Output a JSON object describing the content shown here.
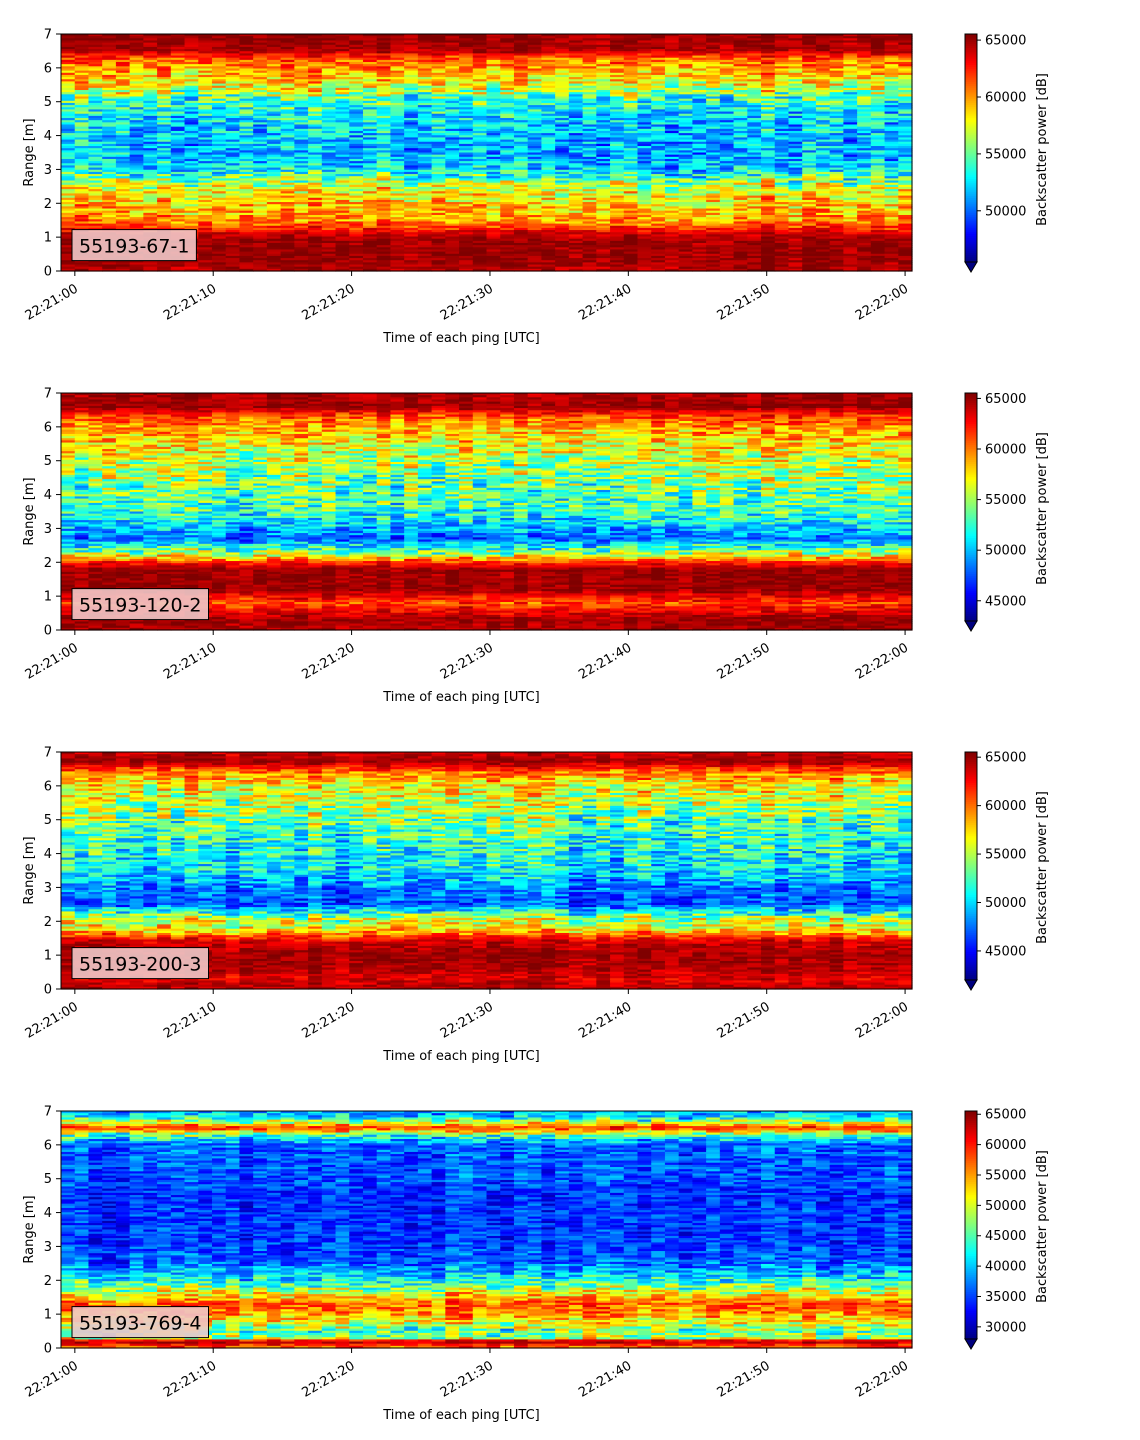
{
  "colormap": "jet",
  "colormap_stops": [
    "#00007f",
    "#0000ff",
    "#007fff",
    "#00ffff",
    "#7fff7f",
    "#ffff00",
    "#ff7f00",
    "#ff0000",
    "#7f0000"
  ],
  "badge_background": "#f0c8c8",
  "chart_data": [
    {
      "type": "heatmap",
      "label": "55193-67-1",
      "xlabel": "Time of each ping [UTC]",
      "ylabel": "Range [m]",
      "colorbar_label": "Backscatter power [dB]",
      "x_ticks": [
        "22:21:00",
        "22:21:10",
        "22:21:20",
        "22:21:30",
        "22:21:40",
        "22:21:50",
        "22:22:00"
      ],
      "y_ticks": [
        "0",
        "1",
        "2",
        "3",
        "4",
        "5",
        "6",
        "7"
      ],
      "ylim": [
        0,
        7
      ],
      "xlim": [
        "22:20:59",
        "22:22:00.5"
      ],
      "clim": [
        45500,
        65535
      ],
      "colorbar_ticks": [
        "50000",
        "55000",
        "60000",
        "65000"
      ],
      "colorbar_tick_values": [
        50000,
        55000,
        60000,
        65000
      ],
      "profile": {
        "range_m": [
          0,
          0.3,
          0.9,
          1.1,
          1.5,
          2.0,
          2.5,
          3.0,
          3.5,
          4.0,
          4.5,
          5.0,
          5.5,
          6.0,
          6.3,
          6.5,
          7.0
        ],
        "level": [
          0.95,
          0.97,
          0.97,
          0.92,
          0.72,
          0.68,
          0.58,
          0.35,
          0.3,
          0.32,
          0.35,
          0.42,
          0.62,
          0.72,
          0.8,
          0.95,
          0.98
        ]
      }
    },
    {
      "type": "heatmap",
      "label": "55193-120-2",
      "xlabel": "Time of each ping [UTC]",
      "ylabel": "Range [m]",
      "colorbar_label": "Backscatter power [dB]",
      "x_ticks": [
        "22:21:00",
        "22:21:10",
        "22:21:20",
        "22:21:30",
        "22:21:40",
        "22:21:50",
        "22:22:00"
      ],
      "y_ticks": [
        "0",
        "1",
        "2",
        "3",
        "4",
        "5",
        "6",
        "7"
      ],
      "ylim": [
        0,
        7
      ],
      "xlim": [
        "22:20:59",
        "22:22:00.5"
      ],
      "clim": [
        43000,
        65535
      ],
      "colorbar_ticks": [
        "45000",
        "50000",
        "55000",
        "60000",
        "65000"
      ],
      "colorbar_tick_values": [
        45000,
        50000,
        55000,
        60000,
        65000
      ],
      "profile": {
        "range_m": [
          0,
          0.3,
          0.8,
          1.2,
          1.8,
          2.0,
          2.3,
          2.7,
          3.0,
          3.5,
          4.0,
          4.5,
          5.0,
          5.5,
          6.0,
          6.3,
          6.6,
          7.0
        ],
        "level": [
          0.95,
          0.97,
          0.8,
          0.97,
          0.97,
          0.82,
          0.5,
          0.22,
          0.3,
          0.42,
          0.45,
          0.5,
          0.55,
          0.62,
          0.7,
          0.8,
          0.97,
          0.95
        ]
      }
    },
    {
      "type": "heatmap",
      "label": "55193-200-3",
      "xlabel": "Time of each ping [UTC]",
      "ylabel": "Range [m]",
      "colorbar_label": "Backscatter power [dB]",
      "x_ticks": [
        "22:21:00",
        "22:21:10",
        "22:21:20",
        "22:21:30",
        "22:21:40",
        "22:21:50",
        "22:22:00"
      ],
      "y_ticks": [
        "0",
        "1",
        "2",
        "3",
        "4",
        "5",
        "6",
        "7"
      ],
      "ylim": [
        0,
        7
      ],
      "xlim": [
        "22:20:59",
        "22:22:00.5"
      ],
      "clim": [
        42000,
        65535
      ],
      "colorbar_ticks": [
        "45000",
        "50000",
        "55000",
        "60000",
        "65000"
      ],
      "colorbar_tick_values": [
        45000,
        50000,
        55000,
        60000,
        65000
      ],
      "profile": {
        "range_m": [
          0,
          0.3,
          0.6,
          1.0,
          1.4,
          1.8,
          2.1,
          2.5,
          3.0,
          3.5,
          4.0,
          4.5,
          5.0,
          5.5,
          6.0,
          6.4,
          6.7,
          7.0
        ],
        "level": [
          0.95,
          0.9,
          0.95,
          0.97,
          0.92,
          0.62,
          0.55,
          0.2,
          0.25,
          0.35,
          0.38,
          0.42,
          0.48,
          0.55,
          0.62,
          0.75,
          0.97,
          0.92
        ]
      }
    },
    {
      "type": "heatmap",
      "label": "55193-769-4",
      "xlabel": "Time of each ping [UTC]",
      "ylabel": "Range [m]",
      "colorbar_label": "Backscatter power [dB]",
      "x_ticks": [
        "22:21:00",
        "22:21:10",
        "22:21:20",
        "22:21:30",
        "22:21:40",
        "22:21:50",
        "22:22:00"
      ],
      "y_ticks": [
        "0",
        "1",
        "2",
        "3",
        "4",
        "5",
        "6",
        "7"
      ],
      "ylim": [
        0,
        7
      ],
      "xlim": [
        "22:20:59",
        "22:22:00.5"
      ],
      "clim": [
        28000,
        65535
      ],
      "colorbar_ticks": [
        "30000",
        "35000",
        "40000",
        "45000",
        "50000",
        "55000",
        "60000",
        "65000"
      ],
      "colorbar_tick_values": [
        30000,
        35000,
        40000,
        45000,
        50000,
        55000,
        60000,
        65000
      ],
      "profile": {
        "range_m": [
          0,
          0.2,
          0.3,
          0.5,
          0.8,
          1.0,
          1.3,
          1.6,
          2.0,
          2.5,
          3.0,
          3.5,
          4.0,
          4.5,
          5.0,
          5.5,
          6.0,
          6.3,
          6.5,
          6.8,
          7.0
        ],
        "level": [
          0.75,
          0.97,
          0.5,
          0.45,
          0.62,
          0.72,
          0.78,
          0.6,
          0.38,
          0.22,
          0.18,
          0.17,
          0.17,
          0.16,
          0.2,
          0.2,
          0.22,
          0.45,
          0.85,
          0.35,
          0.3
        ]
      }
    }
  ]
}
